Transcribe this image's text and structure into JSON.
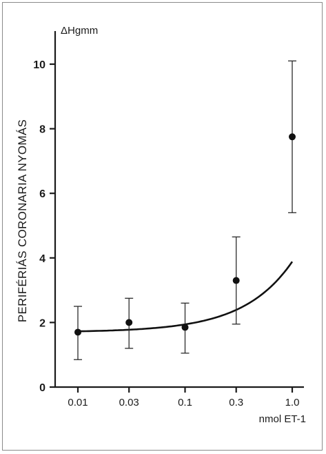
{
  "chart_data": {
    "type": "scatter",
    "y_unit_label": "ΔHgmm",
    "ylabel": "PERIFÉRIÁS CORONARIA NYOMÁS",
    "x_unit_label": "nmol ET-1",
    "x_scale": "log",
    "x_tick_labels": [
      "0.01",
      "0.03",
      "0.1",
      "0.3",
      "1.0"
    ],
    "y_tick_labels": [
      "0",
      "2",
      "4",
      "6",
      "8",
      "10"
    ],
    "ylim": [
      0,
      11
    ],
    "grid": false,
    "points": [
      {
        "x": 0.01,
        "y": 1.7,
        "err_low": 0.85,
        "err_high": 2.5
      },
      {
        "x": 0.03,
        "y": 2.0,
        "err_low": 1.2,
        "err_high": 2.75
      },
      {
        "x": 0.1,
        "y": 1.85,
        "err_low": 1.05,
        "err_high": 2.6
      },
      {
        "x": 0.3,
        "y": 3.3,
        "err_low": 1.95,
        "err_high": 4.65
      },
      {
        "x": 1.0,
        "y": 7.75,
        "err_low": 5.4,
        "err_high": 10.1
      }
    ],
    "fit_curve": true,
    "colors": {
      "marks": "#111111",
      "axes": "#1a1a1a",
      "background": "#ffffff"
    }
  }
}
